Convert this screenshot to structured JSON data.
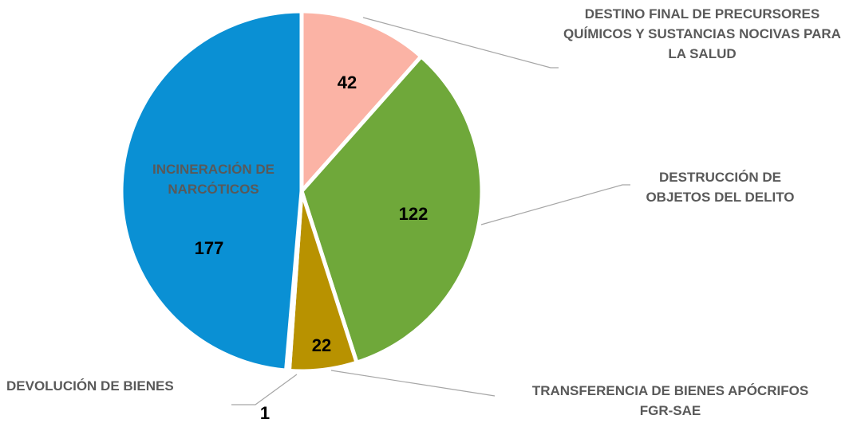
{
  "chart_data": {
    "type": "pie",
    "categories": [
      "DESTINO FINAL DE PRECURSORES QUÍMICOS Y SUSTANCIAS NOCIVAS PARA LA SALUD",
      "DESTRUCCIÓN DE OBJETOS DEL DELITO",
      "TRANSFERENCIA DE BIENES APÓCRIFOS FGR-SAE",
      "DEVOLUCIÓN DE BIENES",
      "INCINERACIÓN DE NARCÓTICOS"
    ],
    "values": [
      42,
      122,
      22,
      1,
      177
    ],
    "colors": [
      "#fbb3a5",
      "#6fa83a",
      "#b89200",
      "#1a7fc0",
      "#0a90d4"
    ]
  }
}
